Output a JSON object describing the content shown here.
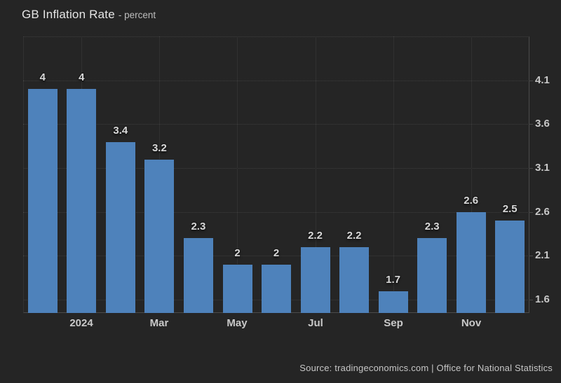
{
  "header": {
    "title": "GB Inflation Rate",
    "subtitle": "- percent"
  },
  "footer": {
    "source": "Source: tradingeconomics.com | Office for National Statistics"
  },
  "colors": {
    "background": "#252525",
    "bar": "#4e82bb",
    "grid": "#3d3d3d",
    "axis": "#4b4b4b",
    "value_label": "#d8d8d8",
    "tick_label": "#c9c9c9",
    "title": "#e5e5e5",
    "subtitle": "#bdbdbd",
    "source": "#c6c6c6"
  },
  "chart_data": {
    "type": "bar",
    "title": "GB Inflation Rate",
    "ylabel": "percent",
    "values": [
      4,
      4,
      3.4,
      3.2,
      2.3,
      2,
      2,
      2.2,
      2.2,
      1.7,
      2.3,
      2.6,
      2.5
    ],
    "bar_labels": [
      "4",
      "4",
      "3.4",
      "3.2",
      "2.3",
      "2",
      "2",
      "2.2",
      "2.2",
      "1.7",
      "2.3",
      "2.6",
      "2.5"
    ],
    "x_ticks": [
      {
        "label": "2024",
        "bar_index": 1
      },
      {
        "label": "Mar",
        "bar_index": 3
      },
      {
        "label": "May",
        "bar_index": 5
      },
      {
        "label": "Jul",
        "bar_index": 7
      },
      {
        "label": "Sep",
        "bar_index": 9
      },
      {
        "label": "Nov",
        "bar_index": 11
      }
    ],
    "y_ticks": [
      "4.1",
      "3.6",
      "3.1",
      "2.6",
      "2.1",
      "1.6"
    ],
    "ylim": [
      1.45,
      4.6
    ],
    "grid": "dotted",
    "legend_position": "none"
  }
}
